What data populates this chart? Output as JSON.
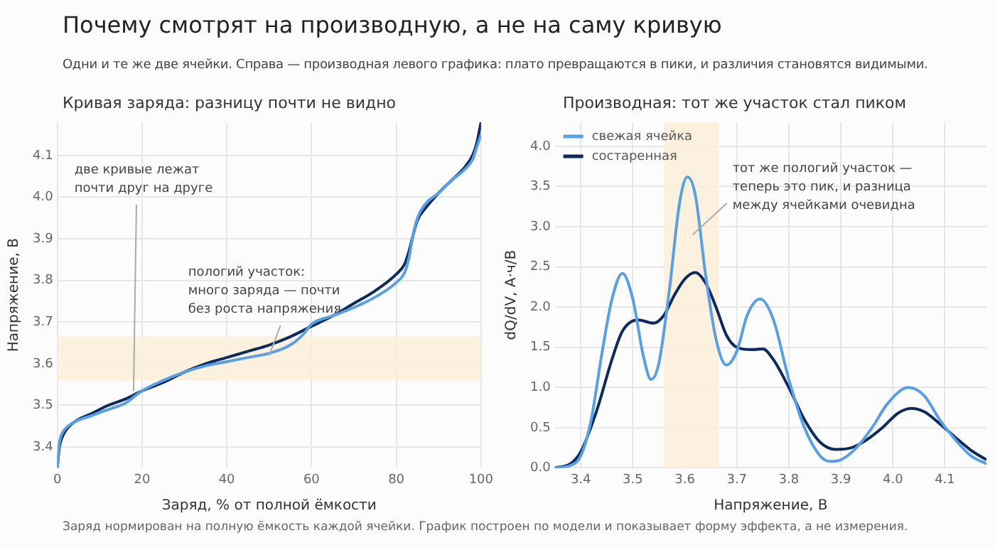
{
  "chart_data": [
    {
      "type": "line",
      "title": "Кривая заряда: разницу почти не видно",
      "xlabel": "Заряд, % от полной ёмкости",
      "ylabel": "Напряжение, В",
      "xlim": [
        0,
        100
      ],
      "xticks": [
        0,
        20,
        40,
        60,
        80,
        100
      ],
      "ylim": [
        3.35,
        4.18
      ],
      "yticks": [
        3.4,
        3.5,
        3.6,
        3.7,
        3.8,
        3.9,
        {
          "value": 4,
          "label": "4.0"
        },
        4.1
      ],
      "grid": true,
      "legend": false,
      "line_style": "solid",
      "marker": "none",
      "bands": [
        {
          "axis": "y",
          "from": 3.56,
          "to": 3.665,
          "color": "#fbefd9"
        }
      ],
      "annotations": [
        "Почему смотрят на производную, а не на саму кривую",
        "Одни и те же две ячейки. Справа — производная левого графика: плато превращаются в пики, и различия становятся видимыми.",
        "Заряд нормирован на полную ёмкость каждой ячейки. График построен по модели и показывает форму эффекта, а не измерения.",
        {
          "text": "две кривые лежат\nпочти друг на друге",
          "x": 18,
          "y": 3.535
        },
        {
          "text": "пологий участок:\nмного заряда — почти\nбез роста напряжения",
          "x": 50,
          "y": 3.62
        }
      ],
      "series": [
        {
          "color": "#5b9fe3",
          "x": [
            0,
            0.5,
            1,
            2,
            4,
            8,
            12,
            16,
            18,
            20,
            25,
            30,
            35,
            40,
            45,
            50,
            55,
            58,
            60,
            65,
            70,
            75,
            80,
            82,
            83,
            84,
            85,
            87,
            90,
            93,
            96,
            98,
            99,
            100
          ],
          "values": [
            3.35,
            3.41,
            3.43,
            3.445,
            3.46,
            3.475,
            3.49,
            3.505,
            3.52,
            3.535,
            3.56,
            3.58,
            3.595,
            3.605,
            3.615,
            3.625,
            3.645,
            3.67,
            3.695,
            3.715,
            3.735,
            3.76,
            3.795,
            3.82,
            3.855,
            3.91,
            3.95,
            3.985,
            4.01,
            4.04,
            4.065,
            4.09,
            4.12,
            4.15
          ]
        },
        {
          "color": "#0d2a5c",
          "x": [
            0,
            0.5,
            1,
            2,
            4,
            8,
            12,
            16,
            20,
            25,
            30,
            35,
            40,
            45,
            50,
            55,
            60,
            65,
            70,
            75,
            80,
            82,
            83,
            84,
            85,
            87,
            90,
            93,
            96,
            98,
            99,
            100
          ],
          "values": [
            3.35,
            3.4,
            3.42,
            3.44,
            3.46,
            3.48,
            3.5,
            3.515,
            3.535,
            3.555,
            3.58,
            3.6,
            3.615,
            3.63,
            3.645,
            3.665,
            3.69,
            3.715,
            3.745,
            3.775,
            3.815,
            3.84,
            3.87,
            3.91,
            3.945,
            3.975,
            4.01,
            4.04,
            4.07,
            4.1,
            4.13,
            4.18
          ]
        }
      ]
    },
    {
      "type": "line",
      "title": "Производная: тот же участок стал пиком",
      "xlabel": "Напряжение, В",
      "ylabel": "dQ/dV, А·ч/В",
      "xlim": [
        3.35,
        4.18
      ],
      "xticks": [
        3.4,
        3.5,
        3.6,
        3.7,
        3.8,
        3.9,
        {
          "value": 4,
          "label": "4.0"
        },
        4.1
      ],
      "ylim": [
        0,
        4.3
      ],
      "yticks": [
        {
          "value": 0,
          "label": "0.0"
        },
        0.5,
        {
          "value": 1,
          "label": "1.0"
        },
        1.5,
        {
          "value": 2,
          "label": "2.0"
        },
        2.5,
        {
          "value": 3,
          "label": "3.0"
        },
        3.5,
        {
          "value": 4,
          "label": "4.0"
        }
      ],
      "grid": true,
      "legend": "top left",
      "line_style": "solid",
      "marker": "none",
      "bands": [
        {
          "axis": "x",
          "from": 3.56,
          "to": 3.665,
          "color": "#fbefd9"
        }
      ],
      "annotations": [
        {
          "text": "тот же пологий участок —\nтеперь это пик, и разница\nмежду ячейками очевидна",
          "x": 3.615,
          "y": 2.9
        }
      ],
      "series": [
        {
          "name": "свежая ячейка",
          "color": "#5b9fe3",
          "x": [
            3.35,
            3.38,
            3.4,
            3.42,
            3.44,
            3.46,
            3.48,
            3.5,
            3.52,
            3.535,
            3.55,
            3.57,
            3.59,
            3.605,
            3.62,
            3.64,
            3.66,
            3.68,
            3.7,
            3.72,
            3.745,
            3.77,
            3.8,
            3.83,
            3.86,
            3.88,
            3.9,
            3.93,
            3.96,
            3.99,
            4.03,
            4.06,
            4.09,
            4.12,
            4.15,
            4.18
          ],
          "values": [
            0,
            0.03,
            0.15,
            0.6,
            1.4,
            2.1,
            2.42,
            2.1,
            1.4,
            1.1,
            1.3,
            2.2,
            3.3,
            3.62,
            3.4,
            2.4,
            1.6,
            1.28,
            1.45,
            1.9,
            2.1,
            1.85,
            1.1,
            0.5,
            0.15,
            0.08,
            0.1,
            0.25,
            0.5,
            0.8,
            1,
            0.9,
            0.6,
            0.35,
            0.15,
            0.05
          ]
        },
        {
          "name": "состаренная",
          "color": "#0d2a5c",
          "x": [
            3.35,
            3.38,
            3.4,
            3.43,
            3.46,
            3.48,
            3.51,
            3.54,
            3.56,
            3.58,
            3.6,
            3.62,
            3.64,
            3.66,
            3.68,
            3.7,
            3.73,
            3.75,
            3.77,
            3.8,
            3.83,
            3.86,
            3.89,
            3.92,
            3.95,
            3.98,
            4.01,
            4.035,
            4.06,
            4.09,
            4.12,
            4.15,
            4.18
          ],
          "values": [
            0,
            0.05,
            0.2,
            0.7,
            1.35,
            1.7,
            1.84,
            1.8,
            1.9,
            2.15,
            2.35,
            2.43,
            2.3,
            2,
            1.65,
            1.5,
            1.47,
            1.48,
            1.35,
            1,
            0.6,
            0.32,
            0.23,
            0.25,
            0.35,
            0.5,
            0.68,
            0.74,
            0.7,
            0.55,
            0.38,
            0.22,
            0.1
          ]
        }
      ]
    }
  ]
}
